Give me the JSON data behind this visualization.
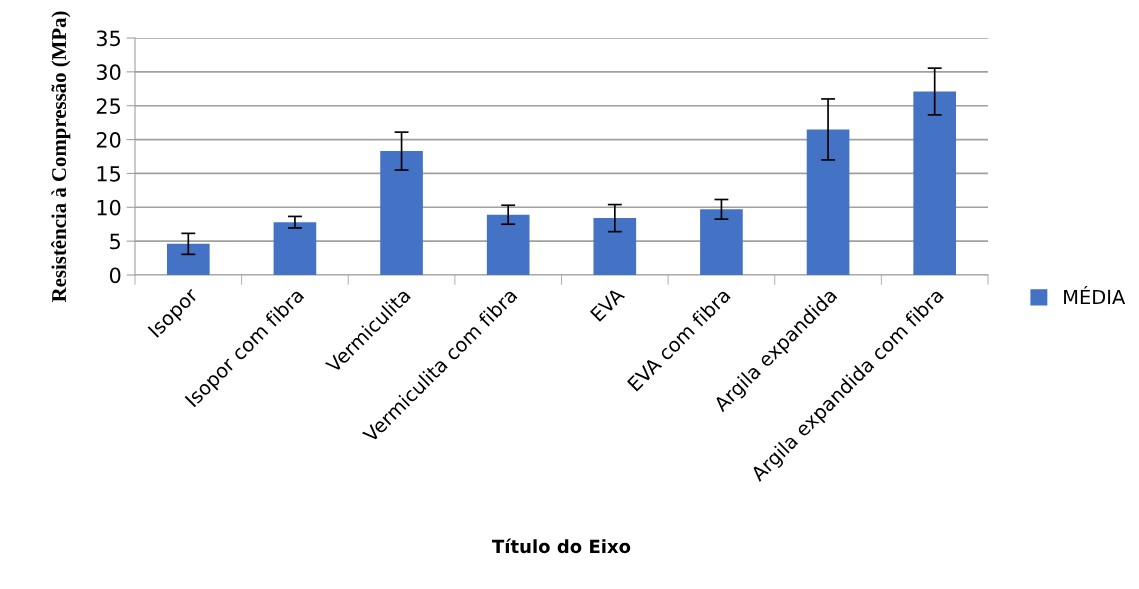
{
  "chart_data": {
    "type": "bar",
    "xlabel": "Título do Eixo",
    "ylabel": "Resistência à Compressão (MPa)",
    "categories": [
      "Isopor",
      "Isopor com fibra",
      "Vermiculita",
      "Vermiculita com fibra",
      "EVA",
      "EVA com fibra",
      "Argila expandida",
      "Argila expandida com fibra"
    ],
    "series": [
      {
        "name": "MÉDIA",
        "color": "#4472c4",
        "values": [
          4.6,
          7.8,
          18.3,
          8.9,
          8.4,
          9.7,
          21.5,
          27.1
        ],
        "errors": [
          1.55,
          0.85,
          2.8,
          1.4,
          2.0,
          1.45,
          4.5,
          3.45
        ]
      }
    ],
    "ylim": [
      0,
      35
    ],
    "yticks": [
      0,
      5,
      10,
      15,
      20,
      25,
      30,
      35
    ],
    "grid": "y",
    "legend": "right"
  }
}
